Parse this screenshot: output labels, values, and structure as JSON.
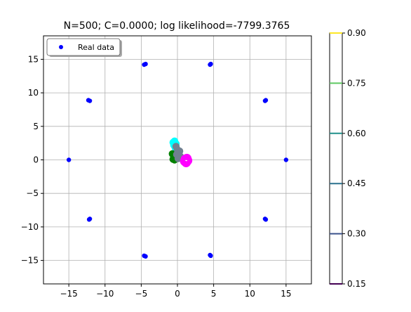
{
  "chart_data": {
    "type": "scatter",
    "title": "N=500; C=0.0000; log likelihood=-7799.3765",
    "xlim": [
      -18.5,
      18.5
    ],
    "ylim": [
      -18.5,
      18.5
    ],
    "xticks": [
      -15,
      -10,
      -5,
      0,
      5,
      10,
      15
    ],
    "yticks": [
      -15,
      -10,
      -5,
      0,
      5,
      10,
      15
    ],
    "xtick_labels": [
      "−15",
      "−10",
      "−5",
      "0",
      "5",
      "10",
      "15"
    ],
    "ytick_labels": [
      "−15",
      "−10",
      "−5",
      "0",
      "5",
      "10",
      "15"
    ],
    "grid": true,
    "legend": {
      "placement": "top-left",
      "entries": [
        {
          "label": "Real data",
          "color": "#0000ff"
        }
      ]
    },
    "series": [
      {
        "name": "Real data",
        "color": "#0000ff",
        "x": [
          -15.0,
          -12.1,
          -12.3,
          -4.6,
          -4.4,
          4.6,
          4.5,
          12.1,
          12.2,
          15.0,
          12.1,
          12.2,
          4.6,
          4.5,
          -4.6,
          -4.4,
          -12.1,
          -12.2
        ],
        "y": [
          0.0,
          8.8,
          8.9,
          14.2,
          14.3,
          14.3,
          14.2,
          8.8,
          8.9,
          0.0,
          -8.8,
          -8.9,
          -14.3,
          -14.2,
          -14.3,
          -14.4,
          -8.8,
          -8.9
        ]
      },
      {
        "color": "#00ffff",
        "x": [
          -0.6,
          -0.4,
          -0.2,
          -0.5,
          -0.3
        ],
        "y": [
          2.6,
          2.8,
          2.4,
          2.2,
          1.8
        ]
      },
      {
        "color": "#008000",
        "x": [
          -0.7,
          -0.5,
          -0.3,
          -0.6,
          -0.4,
          -0.2
        ],
        "y": [
          0.9,
          0.6,
          0.3,
          0.1,
          0.0,
          0.4
        ]
      },
      {
        "color": "#708090",
        "x": [
          -0.2,
          0.0,
          0.2,
          0.4,
          0.1,
          -0.1,
          0.3
        ],
        "y": [
          2.0,
          1.5,
          1.0,
          0.5,
          0.2,
          0.8,
          1.3
        ]
      },
      {
        "color": "#ff00ff",
        "x": [
          1.1,
          1.4,
          1.0,
          1.3,
          1.2
        ],
        "y": [
          0.1,
          -0.1,
          -0.2,
          0.2,
          -0.4
        ]
      }
    ],
    "colorbar": {
      "ticks": [
        0.15,
        0.3,
        0.45,
        0.6,
        0.75,
        0.9
      ],
      "tick_labels": [
        "0.15",
        "0.30",
        "0.45",
        "0.60",
        "0.75",
        "0.90"
      ],
      "levels": [
        {
          "value": 0.15,
          "color": "#440154"
        },
        {
          "value": 0.3,
          "color": "#3b528b"
        },
        {
          "value": 0.45,
          "color": "#2c728e"
        },
        {
          "value": 0.6,
          "color": "#21918c"
        },
        {
          "value": 0.75,
          "color": "#5ec962"
        },
        {
          "value": 0.9,
          "color": "#fde725"
        }
      ]
    }
  }
}
